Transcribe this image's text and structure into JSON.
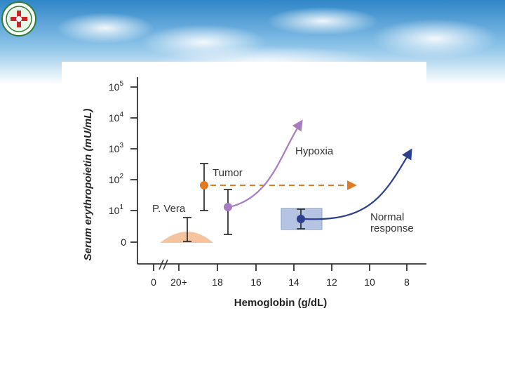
{
  "logo": {
    "description_icon": "emblem-icon"
  },
  "chart_data": {
    "type": "scatter",
    "xlabel": "Hemoglobin (g/dL)",
    "ylabel": "Serum erythropoietin (mU/mL)",
    "x_tick_labels": [
      "0",
      "20+",
      "18",
      "16",
      "14",
      "12",
      "10",
      "8"
    ],
    "x_tick_values": [
      0,
      20,
      18,
      16,
      14,
      12,
      10,
      8
    ],
    "x_axis_reversed": true,
    "x_axis_break": true,
    "y_tick_labels": [
      {
        "base": "0",
        "exp": ""
      },
      {
        "base": "10",
        "exp": "1"
      },
      {
        "base": "10",
        "exp": "2"
      },
      {
        "base": "10",
        "exp": "3"
      },
      {
        "base": "10",
        "exp": "4"
      },
      {
        "base": "10",
        "exp": "5"
      }
    ],
    "y_scale": "log",
    "grid": false,
    "series": [
      {
        "name": "P. Vera",
        "color": "#f5c39e",
        "x": 20.3,
        "y": 0,
        "y_err": [
          0,
          6
        ]
      },
      {
        "name": "Tumor",
        "color": "#e07b24",
        "x": 18.7,
        "y": 60,
        "y_err": [
          9,
          300
        ]
      },
      {
        "name": "Hypoxia",
        "color": "#a77bbf",
        "x": 17.4,
        "y": 13,
        "y_err": [
          1.5,
          45
        ]
      },
      {
        "name": "Normal response",
        "color": "#2b3f8f",
        "x": 13.5,
        "y": 5,
        "y_err": [
          2.5,
          11
        ]
      }
    ],
    "annotations": {
      "pvera": "P. Vera",
      "tumor": "Tumor",
      "hypoxia": "Hypoxia",
      "normal_line1": "Normal",
      "normal_line2": "response"
    }
  }
}
